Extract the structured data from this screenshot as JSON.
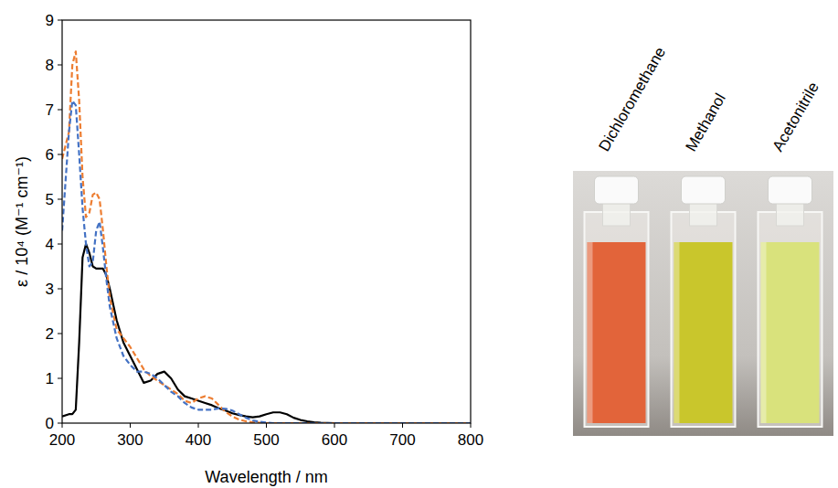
{
  "chart_data": {
    "type": "line",
    "x_label": "Wavelength / nm",
    "y_label": "ε / 10⁴ (M⁻¹ cm⁻¹)",
    "x": [
      200,
      210,
      215,
      220,
      225,
      230,
      235,
      240,
      245,
      250,
      255,
      260,
      265,
      270,
      280,
      290,
      300,
      310,
      320,
      330,
      340,
      350,
      360,
      370,
      380,
      390,
      400,
      410,
      420,
      430,
      440,
      450,
      460,
      470,
      480,
      490,
      500,
      510,
      520,
      530,
      540,
      550,
      560,
      570,
      580,
      600,
      700,
      800
    ],
    "series": [
      {
        "color": "#000000",
        "line_style": "solid",
        "values": [
          0.15,
          0.2,
          0.2,
          0.3,
          1.8,
          3.7,
          4.0,
          3.8,
          3.5,
          3.45,
          3.45,
          3.45,
          3.3,
          3.0,
          2.3,
          1.8,
          1.5,
          1.2,
          0.9,
          0.95,
          1.1,
          1.15,
          1.0,
          0.75,
          0.6,
          0.55,
          0.5,
          0.45,
          0.4,
          0.33,
          0.28,
          0.22,
          0.18,
          0.15,
          0.13,
          0.15,
          0.2,
          0.24,
          0.24,
          0.2,
          0.12,
          0.07,
          0.04,
          0.02,
          0.01,
          0,
          0,
          0
        ]
      },
      {
        "color": "#ed7d31",
        "line_style": "dashed",
        "values": [
          5.9,
          6.5,
          8.0,
          8.3,
          7.2,
          5.5,
          4.6,
          4.7,
          5.1,
          5.15,
          5.0,
          4.3,
          3.5,
          2.8,
          2.1,
          1.9,
          1.7,
          1.45,
          1.2,
          1.05,
          0.95,
          0.85,
          0.75,
          0.65,
          0.5,
          0.45,
          0.55,
          0.6,
          0.55,
          0.4,
          0.25,
          0.15,
          0.08,
          0.04,
          0.02,
          0.01,
          0,
          0,
          0,
          0,
          0,
          0,
          0,
          0,
          0,
          0,
          0,
          0
        ]
      },
      {
        "color": "#4472c4",
        "line_style": "dashed",
        "values": [
          4.3,
          6.5,
          7.2,
          7.1,
          6.0,
          4.8,
          4.0,
          3.5,
          3.6,
          4.3,
          4.5,
          3.9,
          3.2,
          2.6,
          1.9,
          1.5,
          1.3,
          1.15,
          1.15,
          1.1,
          1.0,
          0.85,
          0.7,
          0.6,
          0.45,
          0.35,
          0.3,
          0.3,
          0.3,
          0.33,
          0.32,
          0.28,
          0.2,
          0.12,
          0.06,
          0.03,
          0.01,
          0,
          0,
          0,
          0,
          0,
          0,
          0,
          0,
          0,
          0,
          0
        ]
      }
    ],
    "xlim": [
      200,
      800
    ],
    "xticks": [
      200,
      300,
      400,
      500,
      600,
      700,
      800
    ],
    "ylim": [
      0,
      9
    ],
    "yticks": [
      0,
      1,
      2,
      3,
      4,
      5,
      6,
      7,
      8,
      9
    ],
    "grid": false
  },
  "photo": {
    "solvents": [
      {
        "label": "Dichloromethane",
        "color": "#e2643a"
      },
      {
        "label": "Methanol",
        "color": "#c9c62c"
      },
      {
        "label": "Acetonitrile",
        "color": "#d9e27c"
      }
    ]
  }
}
